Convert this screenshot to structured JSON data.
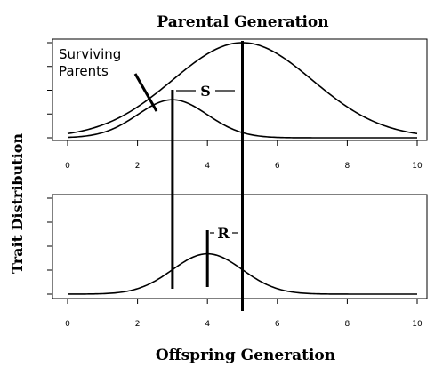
{
  "figure": {
    "top_title": "Parental Generation",
    "bottom_title": "Offspring Generation",
    "ylabel": "Trait Distribution"
  },
  "chart_data": [
    {
      "type": "line",
      "title": "Parental Generation",
      "xlabel": "",
      "ylabel": "Trait Distribution",
      "xlim": [
        0,
        10
      ],
      "ylim": [
        0,
        1
      ],
      "x_ticks": [
        0,
        2,
        4,
        6,
        8,
        10
      ],
      "x_tick_labels": [
        "0",
        "2",
        "4",
        "6",
        "8",
        "10"
      ],
      "y_tick_count": 5,
      "series": [
        {
          "name": "",
          "kind": "normal",
          "mean": 5,
          "sd": 2,
          "peak": 1.0
        },
        {
          "name": "Surviving Parents",
          "kind": "normal",
          "mean": 3,
          "sd": 1,
          "peak": 0.4
        }
      ],
      "vlines": [
        3,
        5
      ],
      "annotations": {
        "surviving_label_line1": "Surviving",
        "surviving_label_line2": "Parents",
        "s_label": "S"
      }
    },
    {
      "type": "line",
      "title": "Offspring Generation",
      "xlabel": "Offspring Generation",
      "ylabel": "Trait Distribution",
      "xlim": [
        0,
        10
      ],
      "ylim": [
        0,
        1
      ],
      "x_ticks": [
        0,
        2,
        4,
        6,
        8,
        10
      ],
      "x_tick_labels": [
        "0",
        "2",
        "4",
        "6",
        "8",
        "10"
      ],
      "y_tick_count": 5,
      "series": [
        {
          "name": "",
          "kind": "normal",
          "mean": 4,
          "sd": 1,
          "peak": 0.42
        }
      ],
      "vlines": [
        4
      ],
      "annotations": {
        "r_label": "R"
      }
    }
  ]
}
